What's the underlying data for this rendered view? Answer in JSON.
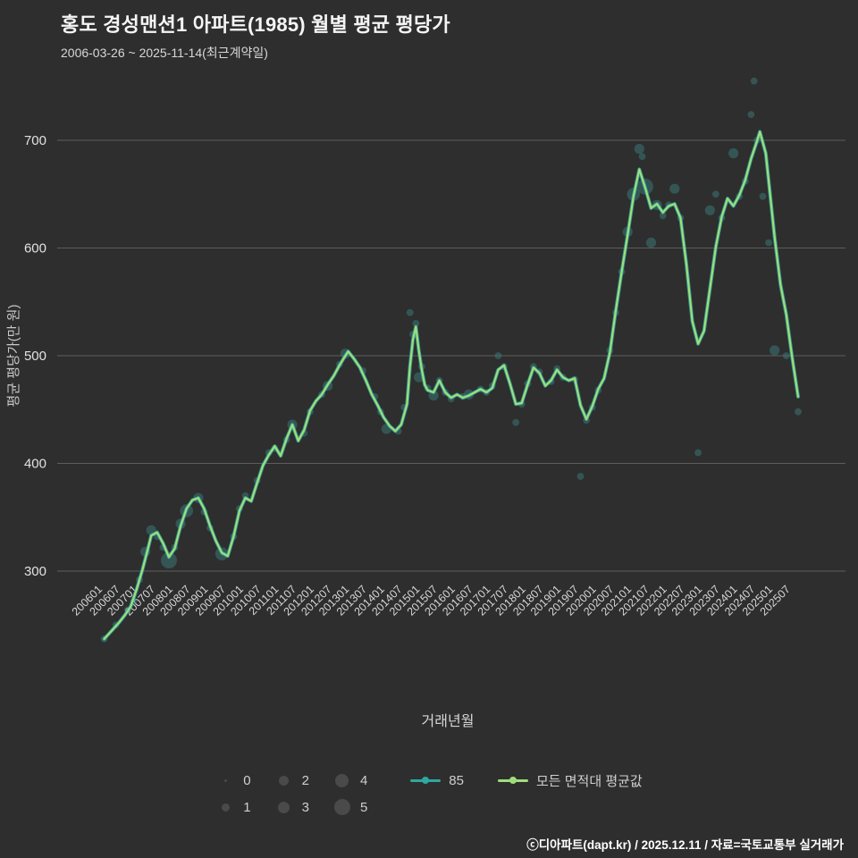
{
  "header": {
    "title": "홍도 경성맨션1 아파트(1985) 월별 평균 평당가",
    "subtitle": "2006-03-26 ~ 2025-11-14(최근계약일)"
  },
  "footer": {
    "credit": "ⓒ디아파트(dapt.kr) / 2025.12.11 / 자료=국토교통부 실거래가"
  },
  "chart_data": {
    "type": "line+scatter",
    "title": "홍도 경성맨션1 아파트(1985) 월별 평균 평당가",
    "xlabel": "거래년월",
    "ylabel": "평균 평당가(만 원)",
    "y_ticks": [
      300,
      400,
      500,
      600,
      700
    ],
    "ylim": [
      225,
      765
    ],
    "grid": "horizontal",
    "background": "#2e2e2e",
    "bubble_color": "#3e8585",
    "x_ticks": [
      "200601",
      "200607",
      "200701",
      "200707",
      "200801",
      "200807",
      "200901",
      "200907",
      "201001",
      "201007",
      "201101",
      "201107",
      "201201",
      "201207",
      "201301",
      "201307",
      "201401",
      "201407",
      "201501",
      "201507",
      "201601",
      "201607",
      "201701",
      "201707",
      "201801",
      "201807",
      "201901",
      "201907",
      "202001",
      "202007",
      "202101",
      "202107",
      "202201",
      "202207",
      "202301",
      "202307",
      "202401",
      "202407",
      "202501",
      "202507"
    ],
    "legend": {
      "bubbles": [
        "0",
        "1",
        "2",
        "3",
        "4",
        "5"
      ],
      "series": [
        {
          "name": "85",
          "color": "#2fa8a0"
        },
        {
          "name": "모든 면적대 평균값",
          "color": "#9fdd7a"
        }
      ]
    },
    "avg_line": [
      [
        "200603",
        237
      ],
      [
        "200604",
        240
      ],
      [
        "200606",
        246
      ],
      [
        "200608",
        252
      ],
      [
        "200610",
        259
      ],
      [
        "200612",
        267
      ],
      [
        "200702",
        283
      ],
      [
        "200704",
        301
      ],
      [
        "200706",
        322
      ],
      [
        "200707",
        333
      ],
      [
        "200709",
        336
      ],
      [
        "200711",
        326
      ],
      [
        "200801",
        313
      ],
      [
        "200803",
        321
      ],
      [
        "200805",
        342
      ],
      [
        "200807",
        358
      ],
      [
        "200809",
        366
      ],
      [
        "200811",
        368
      ],
      [
        "200901",
        358
      ],
      [
        "200903",
        342
      ],
      [
        "200905",
        328
      ],
      [
        "200907",
        317
      ],
      [
        "200909",
        314
      ],
      [
        "200911",
        332
      ],
      [
        "201001",
        356
      ],
      [
        "201003",
        368
      ],
      [
        "201005",
        365
      ],
      [
        "201007",
        382
      ],
      [
        "201009",
        398
      ],
      [
        "201011",
        408
      ],
      [
        "201101",
        416
      ],
      [
        "201103",
        407
      ],
      [
        "201105",
        423
      ],
      [
        "201107",
        436
      ],
      [
        "201109",
        421
      ],
      [
        "201111",
        431
      ],
      [
        "201201",
        449
      ],
      [
        "201203",
        458
      ],
      [
        "201205",
        464
      ],
      [
        "201207",
        473
      ],
      [
        "201209",
        481
      ],
      [
        "201211",
        491
      ],
      [
        "201301",
        500
      ],
      [
        "201302",
        504
      ],
      [
        "201304",
        497
      ],
      [
        "201306",
        489
      ],
      [
        "201308",
        477
      ],
      [
        "201310",
        464
      ],
      [
        "201312",
        454
      ],
      [
        "201402",
        443
      ],
      [
        "201404",
        435
      ],
      [
        "201406",
        430
      ],
      [
        "201408",
        436
      ],
      [
        "201410",
        455
      ],
      [
        "201411",
        490
      ],
      [
        "201412",
        515
      ],
      [
        "201501",
        527
      ],
      [
        "201502",
        505
      ],
      [
        "201503",
        487
      ],
      [
        "201504",
        473
      ],
      [
        "201505",
        468
      ],
      [
        "201507",
        466
      ],
      [
        "201509",
        477
      ],
      [
        "201511",
        466
      ],
      [
        "201601",
        461
      ],
      [
        "201603",
        464
      ],
      [
        "201605",
        461
      ],
      [
        "201607",
        463
      ],
      [
        "201609",
        466
      ],
      [
        "201611",
        469
      ],
      [
        "201701",
        466
      ],
      [
        "201703",
        470
      ],
      [
        "201705",
        487
      ],
      [
        "201707",
        491
      ],
      [
        "201709",
        474
      ],
      [
        "201711",
        455
      ],
      [
        "201801",
        456
      ],
      [
        "201803",
        473
      ],
      [
        "201805",
        489
      ],
      [
        "201807",
        484
      ],
      [
        "201809",
        472
      ],
      [
        "201811",
        477
      ],
      [
        "201901",
        487
      ],
      [
        "201903",
        480
      ],
      [
        "201905",
        477
      ],
      [
        "201907",
        479
      ],
      [
        "201909",
        454
      ],
      [
        "201911",
        441
      ],
      [
        "202001",
        453
      ],
      [
        "202003",
        469
      ],
      [
        "202005",
        479
      ],
      [
        "202007",
        503
      ],
      [
        "202009",
        542
      ],
      [
        "202011",
        578
      ],
      [
        "202101",
        612
      ],
      [
        "202103",
        648
      ],
      [
        "202105",
        673
      ],
      [
        "202107",
        656
      ],
      [
        "202109",
        637
      ],
      [
        "202111",
        641
      ],
      [
        "202201",
        633
      ],
      [
        "202203",
        639
      ],
      [
        "202205",
        641
      ],
      [
        "202207",
        628
      ],
      [
        "202209",
        585
      ],
      [
        "202211",
        532
      ],
      [
        "202301",
        511
      ],
      [
        "202303",
        523
      ],
      [
        "202305",
        562
      ],
      [
        "202307",
        601
      ],
      [
        "202309",
        629
      ],
      [
        "202311",
        646
      ],
      [
        "202401",
        639
      ],
      [
        "202403",
        649
      ],
      [
        "202405",
        663
      ],
      [
        "202407",
        683
      ],
      [
        "202409",
        699
      ],
      [
        "202410",
        708
      ],
      [
        "202412",
        688
      ],
      [
        "202501",
        662
      ],
      [
        "202503",
        610
      ],
      [
        "202505",
        566
      ],
      [
        "202507",
        538
      ],
      [
        "202509",
        498
      ],
      [
        "202511",
        462
      ]
    ],
    "transactions": [
      [
        "200603",
        237,
        1
      ],
      [
        "200607",
        250,
        1
      ],
      [
        "200611",
        264,
        1
      ],
      [
        "200701",
        272,
        1
      ],
      [
        "200703",
        292,
        1
      ],
      [
        "200705",
        318,
        2
      ],
      [
        "200707",
        338,
        2
      ],
      [
        "200709",
        332,
        1
      ],
      [
        "200711",
        322,
        1
      ],
      [
        "200801",
        310,
        4
      ],
      [
        "200803",
        322,
        1
      ],
      [
        "200805",
        344,
        2
      ],
      [
        "200807",
        356,
        3
      ],
      [
        "200811",
        368,
        2
      ],
      [
        "200901",
        355,
        1
      ],
      [
        "200903",
        340,
        1
      ],
      [
        "200907",
        316,
        3
      ],
      [
        "200911",
        332,
        1
      ],
      [
        "201001",
        358,
        1
      ],
      [
        "201003",
        370,
        1
      ],
      [
        "201007",
        384,
        1
      ],
      [
        "201011",
        410,
        1
      ],
      [
        "201101",
        414,
        1
      ],
      [
        "201105",
        422,
        1
      ],
      [
        "201107",
        436,
        2
      ],
      [
        "201111",
        428,
        1
      ],
      [
        "201201",
        448,
        1
      ],
      [
        "201205",
        464,
        1
      ],
      [
        "201207",
        472,
        2
      ],
      [
        "201211",
        492,
        1
      ],
      [
        "201301",
        502,
        2
      ],
      [
        "201307",
        486,
        1
      ],
      [
        "201311",
        462,
        1
      ],
      [
        "201401",
        448,
        1
      ],
      [
        "201403",
        432,
        2
      ],
      [
        "201407",
        430,
        1
      ],
      [
        "201409",
        452,
        1
      ],
      [
        "201411",
        540,
        1
      ],
      [
        "201412",
        520,
        1
      ],
      [
        "201501",
        530,
        1
      ],
      [
        "201502",
        480,
        2
      ],
      [
        "201503",
        490,
        1
      ],
      [
        "201505",
        470,
        1
      ],
      [
        "201507",
        463,
        2
      ],
      [
        "201509",
        477,
        1
      ],
      [
        "201511",
        466,
        1
      ],
      [
        "201601",
        460,
        1
      ],
      [
        "201605",
        462,
        1
      ],
      [
        "201607",
        464,
        2
      ],
      [
        "201611",
        469,
        1
      ],
      [
        "201701",
        466,
        1
      ],
      [
        "201703",
        472,
        1
      ],
      [
        "201705",
        500,
        1
      ],
      [
        "201707",
        490,
        1
      ],
      [
        "201711",
        438,
        1
      ],
      [
        "201801",
        455,
        1
      ],
      [
        "201803",
        474,
        1
      ],
      [
        "201805",
        490,
        1
      ],
      [
        "201807",
        485,
        1
      ],
      [
        "201811",
        476,
        1
      ],
      [
        "201901",
        488,
        1
      ],
      [
        "201903",
        480,
        1
      ],
      [
        "201907",
        478,
        1
      ],
      [
        "201909",
        388,
        1
      ],
      [
        "201911",
        440,
        1
      ],
      [
        "202001",
        452,
        1
      ],
      [
        "202003",
        468,
        1
      ],
      [
        "202007",
        505,
        1
      ],
      [
        "202009",
        540,
        1
      ],
      [
        "202011",
        578,
        1
      ],
      [
        "202101",
        615,
        2
      ],
      [
        "202103",
        650,
        3
      ],
      [
        "202105",
        692,
        2
      ],
      [
        "202106",
        685,
        1
      ],
      [
        "202107",
        657,
        4
      ],
      [
        "202109",
        605,
        2
      ],
      [
        "202111",
        640,
        2
      ],
      [
        "202201",
        630,
        1
      ],
      [
        "202203",
        640,
        1
      ],
      [
        "202205",
        655,
        2
      ],
      [
        "202207",
        628,
        1
      ],
      [
        "202301",
        410,
        1
      ],
      [
        "202305",
        635,
        2
      ],
      [
        "202307",
        650,
        1
      ],
      [
        "202309",
        628,
        1
      ],
      [
        "202401",
        688,
        2
      ],
      [
        "202403",
        648,
        1
      ],
      [
        "202405",
        662,
        1
      ],
      [
        "202407",
        724,
        1
      ],
      [
        "202408",
        755,
        1
      ],
      [
        "202409",
        700,
        1
      ],
      [
        "202411",
        648,
        1
      ],
      [
        "202501",
        605,
        1
      ],
      [
        "202503",
        505,
        2
      ],
      [
        "202507",
        500,
        1
      ],
      [
        "202511",
        448,
        1
      ]
    ]
  }
}
